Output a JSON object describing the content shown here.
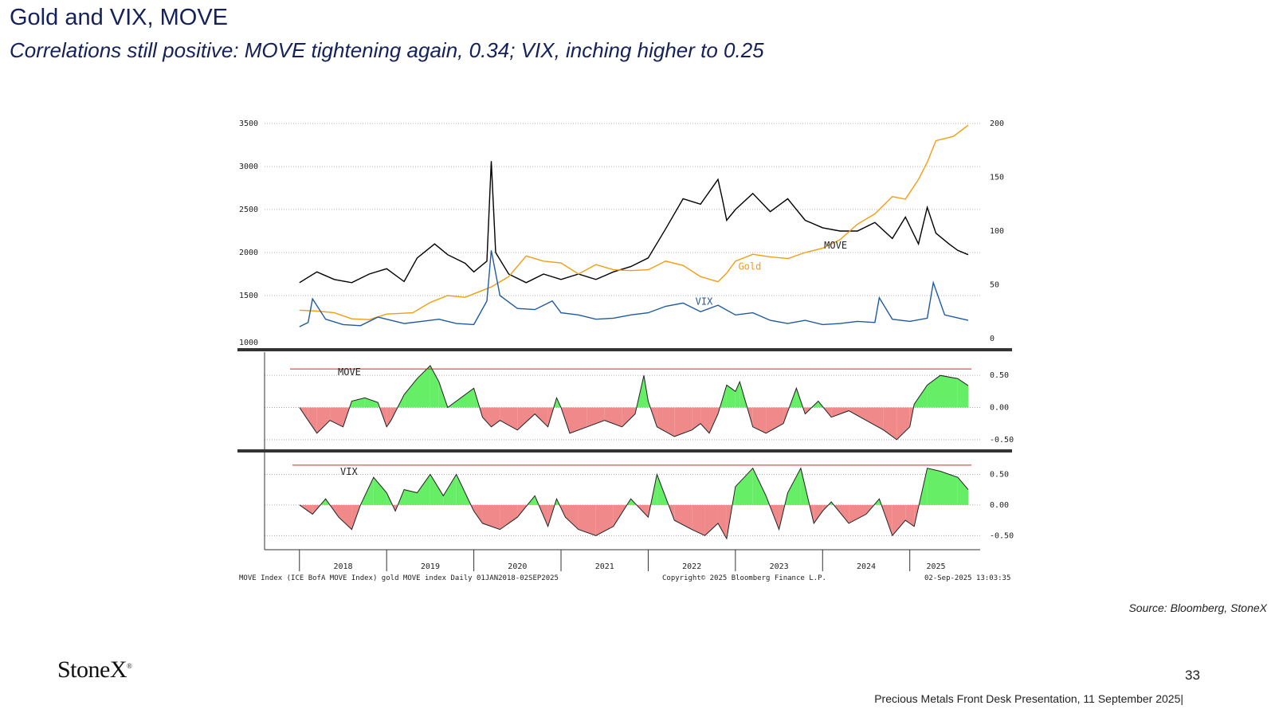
{
  "header": {
    "title": "Gold and VIX, MOVE",
    "subtitle": "Correlations still positive:  MOVE tightening again, 0.34; VIX, inching higher to 0.25"
  },
  "source": "Source: Bloomberg, StoneX",
  "logo": {
    "text": "StoneX",
    "mark": "®"
  },
  "page_number": "33",
  "footer": "Precious Metals Front Desk Presentation, 11 September 2025|",
  "chart_data": [
    {
      "type": "line",
      "panel": "main",
      "x_ticks": [
        "2018",
        "2019",
        "2020",
        "2021",
        "2022",
        "2023",
        "2024",
        "2025"
      ],
      "left_axis": {
        "ylim": [
          1000,
          3500
        ],
        "ticks": [
          "3500",
          "3000",
          "2500",
          "2000",
          "1500",
          "1000"
        ]
      },
      "right_axis": {
        "ylim": [
          0,
          200
        ],
        "ticks": [
          "200",
          "150",
          "100",
          "50",
          "0"
        ]
      },
      "series": [
        {
          "name": "MOVE",
          "axis": "right",
          "color": "#000000",
          "x": [
            2018.0,
            2018.2,
            2018.4,
            2018.6,
            2018.8,
            2019.0,
            2019.2,
            2019.35,
            2019.55,
            2019.7,
            2019.9,
            2020.0,
            2020.15,
            2020.2,
            2020.25,
            2020.4,
            2020.6,
            2020.8,
            2021.0,
            2021.2,
            2021.4,
            2021.6,
            2021.8,
            2022.0,
            2022.2,
            2022.4,
            2022.6,
            2022.8,
            2022.85,
            2022.9,
            2023.0,
            2023.2,
            2023.4,
            2023.6,
            2023.8,
            2024.0,
            2024.2,
            2024.4,
            2024.6,
            2024.8,
            2024.95,
            2025.1,
            2025.2,
            2025.3,
            2025.45,
            2025.55,
            2025.67
          ],
          "values": [
            52,
            62,
            55,
            52,
            60,
            65,
            53,
            75,
            88,
            78,
            70,
            62,
            72,
            165,
            80,
            60,
            52,
            60,
            55,
            60,
            55,
            62,
            67,
            75,
            102,
            130,
            125,
            148,
            130,
            110,
            120,
            135,
            118,
            130,
            110,
            103,
            100,
            100,
            108,
            93,
            113,
            88,
            122,
            98,
            88,
            82,
            78
          ]
        },
        {
          "name": "Gold",
          "axis": "left",
          "color": "#f39c12",
          "x": [
            2018.0,
            2018.2,
            2018.4,
            2018.6,
            2018.8,
            2019.0,
            2019.3,
            2019.5,
            2019.7,
            2019.9,
            2020.0,
            2020.2,
            2020.4,
            2020.6,
            2020.8,
            2021.0,
            2021.2,
            2021.4,
            2021.6,
            2021.8,
            2022.0,
            2022.2,
            2022.4,
            2022.6,
            2022.8,
            2022.9,
            2023.0,
            2023.2,
            2023.4,
            2023.6,
            2023.8,
            2024.0,
            2024.2,
            2024.4,
            2024.6,
            2024.8,
            2024.95,
            2025.1,
            2025.2,
            2025.3,
            2025.5,
            2025.67
          ],
          "values": [
            1330,
            1320,
            1300,
            1230,
            1220,
            1285,
            1300,
            1420,
            1500,
            1480,
            1520,
            1600,
            1720,
            1960,
            1900,
            1880,
            1750,
            1860,
            1800,
            1790,
            1800,
            1900,
            1850,
            1720,
            1660,
            1760,
            1900,
            1980,
            1950,
            1930,
            2000,
            2050,
            2150,
            2330,
            2450,
            2650,
            2620,
            2850,
            3050,
            3300,
            3350,
            3480
          ]
        },
        {
          "name": "VIX",
          "axis": "right",
          "color": "#1f5aa0",
          "x": [
            2018.0,
            2018.1,
            2018.15,
            2018.3,
            2018.5,
            2018.7,
            2018.9,
            2019.0,
            2019.2,
            2019.4,
            2019.6,
            2019.8,
            2020.0,
            2020.15,
            2020.2,
            2020.3,
            2020.5,
            2020.7,
            2020.9,
            2021.0,
            2021.2,
            2021.4,
            2021.6,
            2021.8,
            2022.0,
            2022.2,
            2022.4,
            2022.6,
            2022.8,
            2023.0,
            2023.2,
            2023.4,
            2023.6,
            2023.8,
            2024.0,
            2024.2,
            2024.4,
            2024.6,
            2024.65,
            2024.8,
            2025.0,
            2025.2,
            2025.27,
            2025.4,
            2025.67
          ],
          "values": [
            11,
            15,
            37,
            18,
            13,
            12,
            20,
            18,
            14,
            16,
            18,
            14,
            13,
            35,
            82,
            40,
            28,
            27,
            35,
            24,
            22,
            18,
            19,
            22,
            24,
            30,
            33,
            25,
            31,
            22,
            24,
            17,
            14,
            17,
            13,
            14,
            16,
            15,
            38,
            18,
            16,
            19,
            52,
            22,
            17
          ]
        }
      ],
      "annotations": [
        "MOVE",
        "Gold",
        "VIX"
      ]
    },
    {
      "type": "area",
      "panel": "correlation",
      "name": "MOVE",
      "ylim": [
        -0.6,
        0.7
      ],
      "ticks": [
        "0.50",
        "0.00",
        "-0.50"
      ],
      "reference_line": 0.6,
      "x": [
        2018.0,
        2018.1,
        2018.2,
        2018.35,
        2018.5,
        2018.6,
        2018.75,
        2018.9,
        2019.0,
        2019.05,
        2019.2,
        2019.35,
        2019.5,
        2019.6,
        2019.7,
        2020.0,
        2020.1,
        2020.2,
        2020.3,
        2020.5,
        2020.7,
        2020.85,
        2020.95,
        2021.0,
        2021.1,
        2021.3,
        2021.5,
        2021.7,
        2021.85,
        2021.95,
        2022.0,
        2022.1,
        2022.3,
        2022.5,
        2022.6,
        2022.7,
        2022.8,
        2022.9,
        2023.0,
        2023.05,
        2023.2,
        2023.35,
        2023.55,
        2023.7,
        2023.8,
        2023.95,
        2024.1,
        2024.3,
        2024.5,
        2024.7,
        2024.85,
        2025.0,
        2025.05,
        2025.2,
        2025.35,
        2025.55,
        2025.67
      ],
      "values": [
        0.0,
        -0.2,
        -0.4,
        -0.2,
        -0.3,
        0.1,
        0.15,
        0.08,
        -0.3,
        -0.2,
        0.2,
        0.45,
        0.65,
        0.4,
        0.0,
        0.3,
        -0.15,
        -0.3,
        -0.2,
        -0.35,
        -0.1,
        -0.3,
        0.15,
        0.0,
        -0.4,
        -0.3,
        -0.2,
        -0.3,
        -0.1,
        0.5,
        0.1,
        -0.3,
        -0.45,
        -0.35,
        -0.25,
        -0.4,
        -0.1,
        0.35,
        0.25,
        0.4,
        -0.3,
        -0.4,
        -0.25,
        0.3,
        -0.1,
        0.1,
        -0.15,
        -0.05,
        -0.2,
        -0.35,
        -0.5,
        -0.3,
        0.05,
        0.35,
        0.5,
        0.45,
        0.34
      ]
    },
    {
      "type": "area",
      "panel": "correlation",
      "name": "VIX",
      "ylim": [
        -0.6,
        0.7
      ],
      "ticks": [
        "0.50",
        "0.00",
        "-0.50"
      ],
      "reference_line": 0.65,
      "x": [
        2018.0,
        2018.15,
        2018.3,
        2018.45,
        2018.6,
        2018.7,
        2018.85,
        2019.0,
        2019.1,
        2019.2,
        2019.35,
        2019.5,
        2019.65,
        2019.8,
        2020.0,
        2020.1,
        2020.3,
        2020.5,
        2020.7,
        2020.85,
        2020.95,
        2021.05,
        2021.2,
        2021.4,
        2021.6,
        2021.8,
        2022.0,
        2022.1,
        2022.3,
        2022.5,
        2022.65,
        2022.8,
        2022.9,
        2023.0,
        2023.2,
        2023.35,
        2023.5,
        2023.6,
        2023.75,
        2023.9,
        2024.0,
        2024.1,
        2024.3,
        2024.5,
        2024.65,
        2024.8,
        2024.95,
        2025.05,
        2025.2,
        2025.35,
        2025.55,
        2025.67
      ],
      "values": [
        0.0,
        -0.15,
        0.1,
        -0.2,
        -0.4,
        0.0,
        0.45,
        0.2,
        -0.1,
        0.25,
        0.2,
        0.5,
        0.15,
        0.5,
        -0.1,
        -0.3,
        -0.4,
        -0.2,
        0.15,
        -0.35,
        0.1,
        -0.2,
        -0.4,
        -0.5,
        -0.35,
        0.1,
        -0.2,
        0.5,
        -0.25,
        -0.4,
        -0.5,
        -0.3,
        -0.55,
        0.3,
        0.6,
        0.15,
        -0.4,
        0.2,
        0.6,
        -0.3,
        -0.1,
        0.05,
        -0.3,
        -0.15,
        0.1,
        -0.5,
        -0.25,
        -0.35,
        0.6,
        0.55,
        0.45,
        0.25
      ]
    }
  ],
  "chart_footer": {
    "left": "MOVE Index (ICE BofA MOVE Index) gold MOVE index  Daily 01JAN2018-02SEP2025",
    "center": "Copyright© 2025 Bloomberg Finance L.P.",
    "right": "02-Sep-2025 13:03:35"
  },
  "colors": {
    "title": "#14215a",
    "move": "#000000",
    "gold": "#f39c12",
    "vix": "#1f5aa0",
    "positive_fill": "#66ee66",
    "negative_fill": "#f08a8a",
    "reference": "#e02020"
  }
}
